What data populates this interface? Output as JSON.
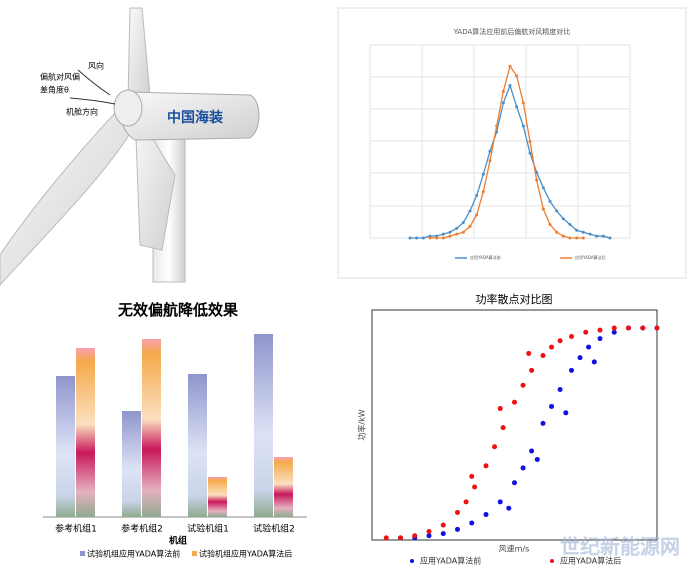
{
  "illustration": {
    "wind_label": "风向",
    "angle_label_line1": "偏航对风偏",
    "angle_label_line2": "差角度θ",
    "nacelle_label": "机舱方向",
    "brand": "中国海装"
  },
  "watermark": "世纪新能源网",
  "chart_data": [
    {
      "type": "line",
      "title": "YADA算法应用前后偏航对风精度对比",
      "x": [
        -15,
        -14,
        -13,
        -12,
        -11,
        -10,
        -9,
        -8,
        -7,
        -6,
        -5,
        -4,
        -3,
        -2,
        -1,
        0,
        1,
        2,
        3,
        4,
        5,
        6,
        7,
        8,
        9,
        10,
        11,
        12,
        13,
        14,
        15
      ],
      "xlim": [
        -21,
        18
      ],
      "ylim": [
        0,
        100
      ],
      "grid": true,
      "series": [
        {
          "name": "应用YADA算法前",
          "color": "#4a8fc7",
          "values": [
            0,
            0,
            0,
            1,
            1,
            2,
            3,
            5,
            8,
            14,
            22,
            33,
            45,
            55,
            70,
            79,
            68,
            58,
            44,
            34,
            26,
            19,
            14,
            10,
            7,
            4,
            3,
            2,
            1,
            1,
            0
          ]
        },
        {
          "name": "应用YADA算法后",
          "color": "#ed7d31",
          "values": [
            null,
            null,
            null,
            0,
            0,
            0,
            1,
            2,
            3,
            6,
            12,
            24,
            40,
            58,
            76,
            89,
            84,
            70,
            50,
            30,
            15,
            7,
            3,
            1,
            0,
            0,
            0,
            null,
            null,
            null,
            null
          ]
        }
      ]
    },
    {
      "type": "bar",
      "title": "无效偏航降低效果",
      "xlabel": "机组",
      "categories": [
        "参考机组1",
        "参考机组2",
        "试验机组1",
        "试验机组2"
      ],
      "ylim": [
        0,
        200
      ],
      "series": [
        {
          "name": "试验机组应用YADA算法前",
          "color": "#8f95cc",
          "values": [
            141,
            106,
            143,
            183
          ]
        },
        {
          "name": "试验机组应用YADA算法后",
          "color": "#f5a94a",
          "values": [
            169,
            178,
            40,
            60
          ]
        }
      ]
    },
    {
      "type": "scatter",
      "title": "功率散点对比图",
      "xlabel": "风速m/s",
      "ylabel": "功率/kW",
      "xlim": [
        0,
        100
      ],
      "ylim": [
        0,
        100
      ],
      "series": [
        {
          "name": "应用YADA算法前",
          "color": "#1010e0",
          "x": [
            10,
            15,
            20,
            25,
            30,
            35,
            40,
            45,
            50,
            53,
            56,
            60,
            63,
            66,
            70,
            73,
            76,
            80,
            85,
            90,
            95,
            100,
            48,
            58,
            68,
            78
          ],
          "y": [
            1,
            1,
            2,
            3,
            5,
            8,
            12,
            18,
            27,
            34,
            42,
            55,
            63,
            71,
            80,
            86,
            91,
            95,
            98,
            100,
            100,
            100,
            15,
            38,
            60,
            84
          ]
        },
        {
          "name": "应用YADA算法后",
          "color": "#f01010",
          "x": [
            5,
            10,
            15,
            20,
            25,
            30,
            33,
            36,
            40,
            43,
            46,
            50,
            53,
            56,
            60,
            63,
            66,
            70,
            75,
            80,
            85,
            90,
            95,
            100,
            35,
            45,
            55
          ],
          "y": [
            1,
            1,
            2,
            4,
            7,
            13,
            18,
            25,
            35,
            44,
            53,
            65,
            73,
            80,
            87,
            91,
            94,
            96,
            98,
            99,
            100,
            100,
            100,
            100,
            30,
            62,
            88
          ]
        }
      ]
    }
  ]
}
